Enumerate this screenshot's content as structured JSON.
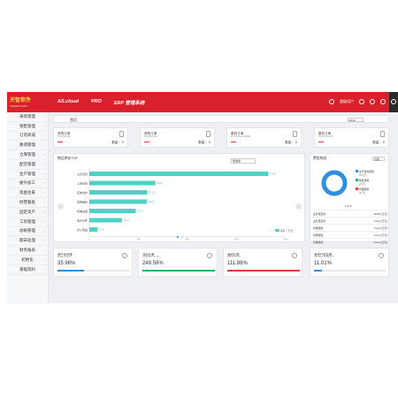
{
  "topbar": {
    "logo_main": "天智软件",
    "logo_sub": "TIANZHI SOFT",
    "nav": [
      "AS.cloud",
      "PRO",
      "ERP 管理系统"
    ],
    "user_label": "超级用户",
    "brand_color": "#d9202c"
  },
  "sidebar": {
    "items": [
      "采购管理",
      "销售管理",
      "订货商城",
      "路调管理",
      "仓库管理",
      "配货管理",
      "生产管理",
      "委外加工",
      "现金往来",
      "经营看板",
      "固定资产",
      "工资管理",
      "总帐管理",
      "期末处理",
      "财务报表",
      "初始化",
      "基础资料"
    ]
  },
  "breadcrumb": {
    "crumb": "首页",
    "select": "2019"
  },
  "stats": [
    {
      "title": "采购订单",
      "sub": "PURCHASE",
      "value_label": "数量：",
      "value": "0"
    },
    {
      "title": "采购订单",
      "sub": "PURCHASE",
      "value_label": "数量：",
      "value": "0"
    },
    {
      "title": "委托订单",
      "sub": "ENTRUST ORDER",
      "value_label": "数量：",
      "value": "0"
    },
    {
      "title": "委外订单",
      "sub": "OUTSOURCE",
      "value_label": "数量：",
      "value": "0"
    }
  ],
  "chart_panel": {
    "title": "物品库存TOP",
    "select": "按金额"
  },
  "chart_data": {
    "type": "bar",
    "orientation": "horizontal",
    "categories": [
      "办公用品",
      "电子元件",
      "机械设备",
      "润滑油料",
      "实体零件",
      "上海天智",
      "山东天智"
    ],
    "values": [
      3600,
      14100,
      20100,
      25000,
      25100,
      28600,
      77500
    ],
    "value_labels": [
      "3.6万",
      "14.1万",
      "20.1万",
      "25.0万",
      "25.1万",
      "28.6万",
      "77.5万"
    ],
    "xticks": [
      "0",
      "200",
      "400",
      "600",
      "800"
    ],
    "xlim": [
      0,
      85000
    ],
    "legend": "库存（万元）",
    "bar_color": "#4fd1c5"
  },
  "donut_panel": {
    "title": "费用构成",
    "select": "月度",
    "legend": [
      {
        "label": "生产经营费用",
        "sub": "(70 万)",
        "color": "#2f8fe0"
      },
      {
        "label": "税费费用",
        "sub": "(0 万)",
        "color": "#27b06a"
      },
      {
        "label": "管理费用",
        "sub": "(0 万)",
        "color": "#e23b3b"
      }
    ],
    "pager": "1/3",
    "rows": [
      {
        "label": "业务员回款",
        "value": "22.65 (万元)"
      },
      {
        "label": "业务员回款",
        "value": "21.44 (万元)"
      },
      {
        "label": "管理费用",
        "value": "11.14 (万元)"
      },
      {
        "label": "管理费用",
        "value": "11.14 (万元)"
      },
      {
        "label": "管理费用",
        "value": "11.14 (万元)"
      }
    ],
    "donut": {
      "primary": 1,
      "color": "#2f8fe0"
    }
  },
  "kpis": [
    {
      "title": "资产负债率",
      "sub": "ASSET RATIO",
      "value": "35.96%",
      "progress": 0.36,
      "color": "#2f8fe0"
    },
    {
      "title": "流动比率",
      "sub": "CURRENT RATIO",
      "value": "249.58%",
      "progress": 1.0,
      "color": "#27b06a"
    },
    {
      "title": "速动比率",
      "sub": "QUICK RATIO",
      "value": "111.86%",
      "progress": 1.0,
      "color": "#e23b3b"
    },
    {
      "title": "净资产收益率",
      "sub": "RETURN ON EQUITY",
      "value": "11.01%",
      "progress": 0.11,
      "color": "#2f8fe0"
    }
  ]
}
